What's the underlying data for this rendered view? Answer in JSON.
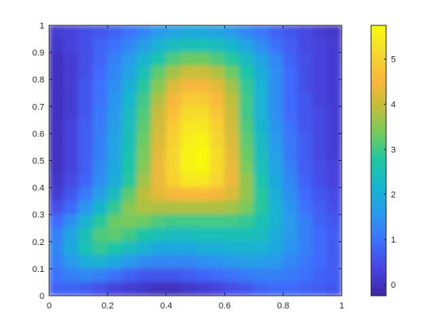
{
  "chart_data": {
    "type": "heatmap",
    "title": "",
    "xlabel": "",
    "ylabel": "",
    "xlim": [
      0,
      1
    ],
    "ylim": [
      0,
      1
    ],
    "x_ticks": [
      {
        "value": 0,
        "label": "0"
      },
      {
        "value": 0.2,
        "label": "0.2"
      },
      {
        "value": 0.4,
        "label": "0.4"
      },
      {
        "value": 0.6,
        "label": "0.6"
      },
      {
        "value": 0.8,
        "label": "0.8"
      },
      {
        "value": 1,
        "label": "1"
      }
    ],
    "y_ticks": [
      {
        "value": 0,
        "label": "0"
      },
      {
        "value": 0.1,
        "label": "0.1"
      },
      {
        "value": 0.2,
        "label": "0.2"
      },
      {
        "value": 0.3,
        "label": "0.3"
      },
      {
        "value": 0.4,
        "label": "0.4"
      },
      {
        "value": 0.5,
        "label": "0.5"
      },
      {
        "value": 0.6,
        "label": "0.6"
      },
      {
        "value": 0.7,
        "label": "0.7"
      },
      {
        "value": 0.8,
        "label": "0.8"
      },
      {
        "value": 0.9,
        "label": "0.9"
      },
      {
        "value": 1,
        "label": "1"
      }
    ],
    "colorbar": {
      "range": [
        -0.25,
        5.75
      ],
      "ticks": [
        {
          "value": 0,
          "label": "0"
        },
        {
          "value": 1,
          "label": "1"
        },
        {
          "value": 2,
          "label": "2"
        },
        {
          "value": 3,
          "label": "3"
        },
        {
          "value": 4,
          "label": "4"
        },
        {
          "value": 5,
          "label": "5"
        }
      ],
      "colormap": [
        "#3e26a8",
        "#4744e1",
        "#3e6ffd",
        "#2a98ee",
        "#18b4d0",
        "#1fc6a4",
        "#72cb5e",
        "#c4bd3a",
        "#fbb73c",
        "#f6d82f",
        "#f9fb0e"
      ]
    },
    "grid": {
      "x": [
        0.025,
        0.075,
        0.125,
        0.175,
        0.225,
        0.275,
        0.325,
        0.375,
        0.425,
        0.475,
        0.525,
        0.575,
        0.625,
        0.675,
        0.725,
        0.775,
        0.825,
        0.875,
        0.925,
        0.975
      ],
      "y": [
        0.975,
        0.925,
        0.875,
        0.825,
        0.775,
        0.725,
        0.675,
        0.625,
        0.575,
        0.525,
        0.475,
        0.425,
        0.375,
        0.325,
        0.275,
        0.225,
        0.175,
        0.125,
        0.075,
        0.025
      ],
      "values": [
        [
          0.2,
          0.3,
          0.5,
          0.6,
          0.8,
          1.0,
          1.3,
          1.6,
          1.8,
          1.9,
          1.9,
          1.8,
          1.6,
          1.3,
          1.1,
          0.8,
          0.6,
          0.4,
          0.2,
          0.1
        ],
        [
          0.1,
          0.3,
          0.5,
          0.8,
          1.0,
          1.3,
          1.7,
          2.1,
          2.4,
          2.5,
          2.5,
          2.4,
          2.2,
          1.8,
          1.4,
          1.0,
          0.7,
          0.4,
          0.3,
          0.2
        ],
        [
          0.0,
          0.2,
          0.5,
          0.8,
          1.2,
          1.6,
          2.1,
          2.6,
          3.1,
          3.3,
          3.3,
          3.1,
          2.8,
          2.3,
          1.8,
          1.3,
          0.8,
          0.5,
          0.3,
          0.2
        ],
        [
          0.0,
          0.2,
          0.5,
          0.9,
          1.3,
          1.8,
          2.5,
          3.2,
          3.7,
          4.0,
          4.0,
          3.8,
          3.3,
          2.7,
          2.0,
          1.4,
          0.9,
          0.5,
          0.3,
          0.2
        ],
        [
          0.0,
          0.2,
          0.6,
          1.0,
          1.4,
          2.0,
          2.8,
          3.5,
          4.2,
          4.5,
          4.5,
          4.3,
          3.7,
          2.9,
          2.1,
          1.4,
          0.9,
          0.5,
          0.3,
          0.2
        ],
        [
          0.0,
          0.2,
          0.6,
          1.0,
          1.5,
          2.2,
          3.0,
          3.8,
          4.5,
          4.9,
          4.9,
          4.6,
          3.9,
          3.0,
          2.1,
          1.4,
          0.9,
          0.6,
          0.3,
          0.2
        ],
        [
          0.0,
          0.2,
          0.6,
          1.1,
          1.6,
          2.3,
          3.1,
          4.0,
          4.7,
          5.2,
          5.2,
          4.8,
          4.0,
          3.0,
          2.1,
          1.4,
          0.9,
          0.6,
          0.4,
          0.2
        ],
        [
          0.0,
          0.3,
          0.7,
          1.1,
          1.7,
          2.4,
          3.2,
          4.1,
          4.9,
          5.4,
          5.4,
          5.0,
          4.1,
          3.1,
          2.2,
          1.5,
          1.0,
          0.6,
          0.4,
          0.2
        ],
        [
          0.0,
          0.3,
          0.7,
          1.2,
          1.8,
          2.5,
          3.3,
          4.2,
          5.0,
          5.5,
          5.6,
          5.1,
          4.2,
          3.2,
          2.3,
          1.6,
          1.1,
          0.7,
          0.4,
          0.2
        ],
        [
          0.0,
          0.3,
          0.7,
          1.2,
          1.8,
          2.6,
          3.4,
          4.3,
          5.1,
          5.6,
          5.7,
          5.2,
          4.3,
          3.3,
          2.4,
          1.7,
          1.1,
          0.7,
          0.4,
          0.2
        ],
        [
          0.0,
          0.3,
          0.7,
          1.3,
          1.9,
          2.7,
          3.5,
          4.4,
          5.1,
          5.6,
          5.7,
          5.2,
          4.4,
          3.4,
          2.5,
          1.8,
          1.2,
          0.7,
          0.5,
          0.3
        ],
        [
          0.1,
          0.4,
          0.8,
          1.4,
          2.0,
          2.8,
          3.7,
          4.4,
          5.0,
          5.4,
          5.4,
          5.1,
          4.4,
          3.6,
          2.7,
          1.9,
          1.3,
          0.8,
          0.5,
          0.3
        ],
        [
          0.2,
          0.6,
          1.1,
          1.7,
          2.4,
          3.2,
          3.9,
          4.3,
          4.5,
          4.6,
          4.6,
          4.5,
          4.2,
          3.6,
          2.8,
          2.0,
          1.4,
          0.9,
          0.6,
          0.4
        ],
        [
          0.5,
          0.9,
          1.5,
          2.2,
          2.9,
          3.5,
          3.8,
          3.8,
          3.8,
          3.8,
          3.8,
          3.8,
          3.7,
          3.4,
          2.8,
          2.1,
          1.5,
          1.0,
          0.7,
          0.5
        ],
        [
          0.9,
          1.4,
          2.1,
          2.8,
          3.3,
          3.4,
          3.3,
          3.1,
          3.0,
          3.0,
          3.0,
          3.0,
          3.0,
          2.9,
          2.6,
          2.1,
          1.6,
          1.2,
          0.8,
          0.6
        ],
        [
          1.2,
          1.8,
          2.5,
          3.1,
          3.2,
          3.0,
          2.7,
          2.5,
          2.4,
          2.4,
          2.5,
          2.5,
          2.5,
          2.5,
          2.4,
          2.0,
          1.6,
          1.2,
          0.9,
          0.7
        ],
        [
          1.3,
          1.9,
          2.5,
          2.9,
          2.7,
          2.4,
          2.1,
          1.9,
          1.9,
          1.9,
          2.0,
          2.0,
          2.1,
          2.1,
          2.1,
          1.9,
          1.5,
          1.2,
          0.9,
          0.7
        ],
        [
          1.2,
          1.6,
          2.0,
          2.1,
          1.9,
          1.6,
          1.4,
          1.3,
          1.3,
          1.3,
          1.4,
          1.5,
          1.6,
          1.7,
          1.7,
          1.6,
          1.3,
          1.1,
          0.9,
          0.7
        ],
        [
          1.0,
          1.2,
          1.3,
          1.2,
          1.0,
          0.8,
          0.6,
          0.6,
          0.6,
          0.7,
          0.8,
          0.9,
          1.0,
          1.1,
          1.2,
          1.2,
          1.1,
          1.0,
          0.8,
          0.7
        ],
        [
          0.8,
          0.8,
          0.7,
          0.5,
          0.3,
          0.2,
          0.1,
          0.0,
          0.0,
          0.1,
          0.2,
          0.3,
          0.5,
          0.6,
          0.8,
          0.9,
          0.9,
          0.8,
          0.7,
          0.6
        ]
      ]
    }
  }
}
